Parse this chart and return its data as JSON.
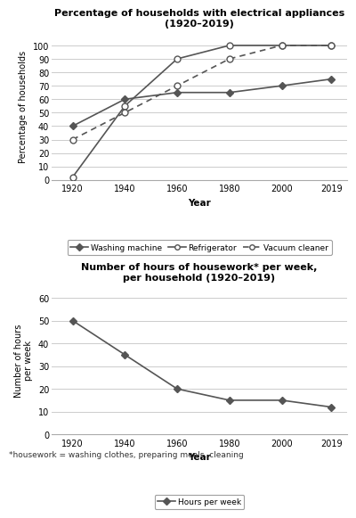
{
  "years": [
    1920,
    1940,
    1960,
    1980,
    2000,
    2019
  ],
  "washing_machine": [
    40,
    60,
    65,
    65,
    70,
    75
  ],
  "refrigerator": [
    2,
    55,
    90,
    100,
    100,
    100
  ],
  "vacuum_cleaner": [
    30,
    50,
    70,
    90,
    100,
    100
  ],
  "hours_per_week": [
    50,
    35,
    20,
    15,
    15,
    12
  ],
  "chart1_title": "Percentage of households with electrical appliances\n(1920–2019)",
  "chart2_title": "Number of hours of housework* per week,\nper household (1920–2019)",
  "chart1_ylabel": "Percentage of households",
  "chart2_ylabel": "Number of hours\nper week",
  "xlabel": "Year",
  "chart1_ylim": [
    0,
    110
  ],
  "chart2_ylim": [
    0,
    65
  ],
  "chart1_yticks": [
    0,
    10,
    20,
    30,
    40,
    50,
    60,
    70,
    80,
    90,
    100
  ],
  "chart2_yticks": [
    0,
    10,
    20,
    30,
    40,
    50,
    60
  ],
  "footnote": "*housework = washing clothes, preparing meals, cleaning",
  "line_color": "#555555",
  "grid_color": "#cccccc"
}
